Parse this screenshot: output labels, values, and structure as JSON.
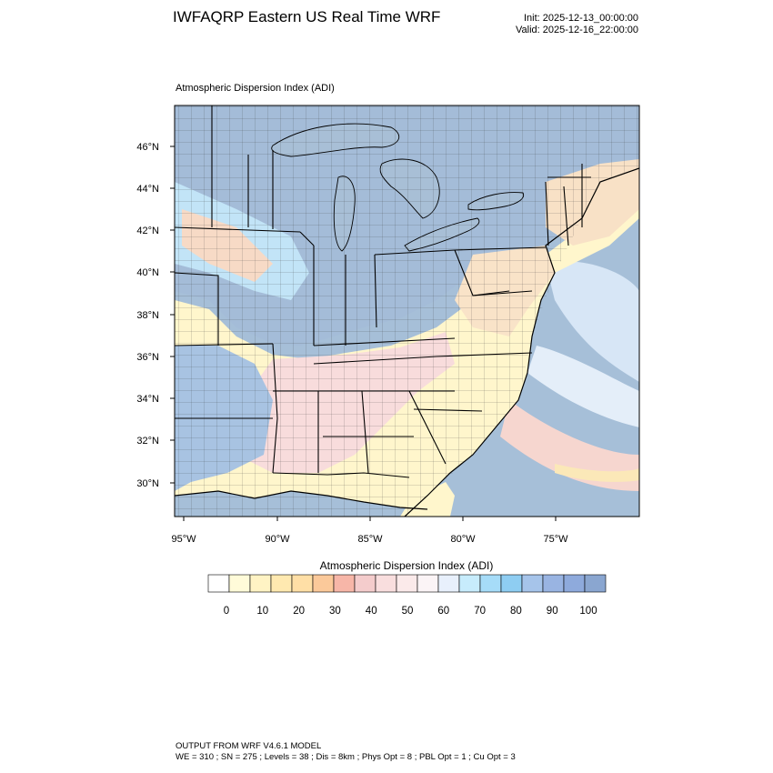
{
  "header": {
    "title": "IWFAQRP Eastern US Real Time WRF",
    "init": "Init: 2025-12-13_00:00:00",
    "valid": "Valid: 2025-12-16_22:00:00"
  },
  "plot": {
    "title": "Atmospheric Dispersion Index   (ADI)",
    "lat_labels": [
      "46°N",
      "44°N",
      "42°N",
      "40°N",
      "38°N",
      "36°N",
      "34°N",
      "32°N",
      "30°N"
    ],
    "lon_labels": [
      "95°W",
      "90°W",
      "85°W",
      "80°W",
      "75°W"
    ]
  },
  "legend": {
    "title": "Atmospheric Dispersion Index  (ADI)",
    "tick_labels": [
      "0",
      "10",
      "20",
      "30",
      "40",
      "50",
      "60",
      "70",
      "80",
      "90",
      "100"
    ],
    "colors": [
      "#ffffff",
      "#fffbd9",
      "#fff3c4",
      "#ffe9b0",
      "#ffdfa6",
      "#fbc99a",
      "#f7b6a8",
      "#f4cccc",
      "#f9dede",
      "#fbeaea",
      "#fbf4f6",
      "#e8f0fc",
      "#c7ecfc",
      "#a6dcf8",
      "#8ecdf2",
      "#a6c4ea",
      "#99b4e2",
      "#8eaadc",
      "#8aa6d0"
    ]
  },
  "colors": {
    "ocean": "#a6bfd8",
    "lake": "#a8bfd6",
    "land_north": "#9fb7d3",
    "land_south": "#fff6cc",
    "land_mid": "#f9d8d8",
    "borders": "#000000"
  },
  "footer": {
    "line1": "OUTPUT FROM WRF V4.6.1 MODEL",
    "line2": "WE = 310 ; SN = 275 ; Levels = 38 ; Dis = 8km ; Phys Opt = 8 ; PBL Opt = 1 ; Cu Opt = 3"
  }
}
